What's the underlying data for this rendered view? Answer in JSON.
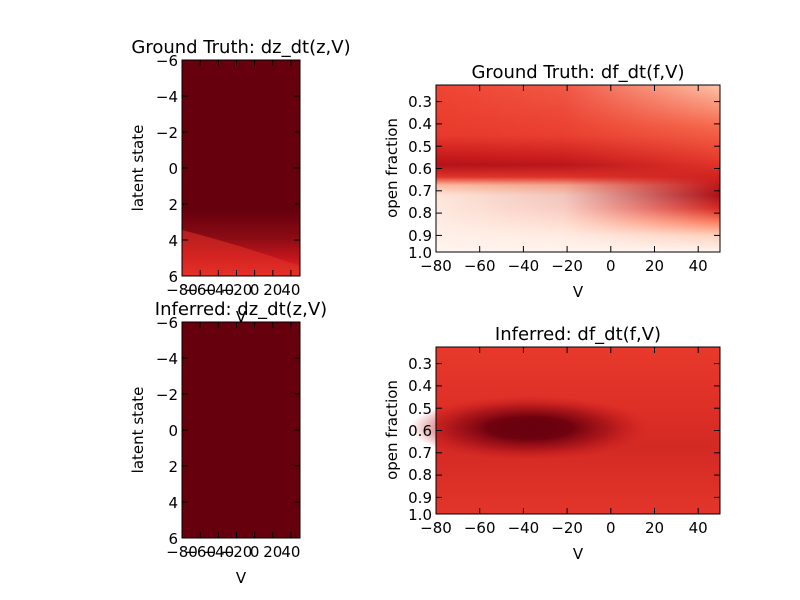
{
  "colors": {
    "background": "#ffffff",
    "cmap_light": "#fff5f0",
    "cmap_dark": "#67000d"
  },
  "chart_data": [
    {
      "type": "heatmap",
      "title": "Ground Truth: dz_dt(z,V)",
      "xlabel": "V",
      "ylabel": "latent state",
      "xlim": [
        -80,
        50
      ],
      "ylim": [
        -6,
        6
      ],
      "y_inverted": true,
      "xticks": [
        "−80",
        "−60",
        "−40",
        "−20",
        "0",
        "20",
        "40"
      ],
      "yticks": [
        "−6",
        "−4",
        "−2",
        "0",
        "2",
        "4",
        "6"
      ],
      "colormap": "Reds",
      "description_values": "uniform dark red (max) except brighter red band near latent state 4 to 6 on the left (V -80 to -40)"
    },
    {
      "type": "heatmap",
      "title": "Ground Truth: df_dt(f,V)",
      "xlabel": "V",
      "ylabel": "open fraction",
      "xlim": [
        -80,
        50
      ],
      "ylim": [
        0.25,
        1.0
      ],
      "y_inverted": true,
      "xticks": [
        "−80",
        "−60",
        "−40",
        "−20",
        "0",
        "20",
        "40"
      ],
      "yticks": [
        "0.3",
        "0.4",
        "0.5",
        "0.6",
        "0.7",
        "0.8",
        "0.9",
        "1.0"
      ],
      "colormap": "Reds",
      "description_values": "dark band near open fraction 0.6 at V=-80 descending to 0.68 at V=50; near-white region below 0.75 on the left; lighter area top-right"
    },
    {
      "type": "heatmap",
      "title": "Inferred: dz_dt(z,V)",
      "xlabel": "V",
      "ylabel": "latent state",
      "xlim": [
        -80,
        50
      ],
      "ylim": [
        -6,
        6
      ],
      "y_inverted": true,
      "xticks": [
        "−80",
        "−60",
        "−40",
        "−20",
        "0",
        "20",
        "40"
      ],
      "yticks": [
        "−6",
        "−4",
        "−2",
        "0",
        "2",
        "4",
        "6"
      ],
      "colormap": "Reds",
      "description_values": "uniform dark red everywhere"
    },
    {
      "type": "heatmap",
      "title": "Inferred: df_dt(f,V)",
      "xlabel": "V",
      "ylabel": "open fraction",
      "xlim": [
        -80,
        50
      ],
      "ylim": [
        0.25,
        1.0
      ],
      "y_inverted": true,
      "xticks": [
        "−80",
        "−60",
        "−40",
        "−20",
        "0",
        "20",
        "40"
      ],
      "yticks": [
        "0.3",
        "0.4",
        "0.5",
        "0.6",
        "0.7",
        "0.8",
        "0.9",
        "1.0"
      ],
      "colormap": "Reds",
      "description_values": "medium red background with a dark elliptical blob centred at V about -35, open fraction about 0.61"
    }
  ]
}
